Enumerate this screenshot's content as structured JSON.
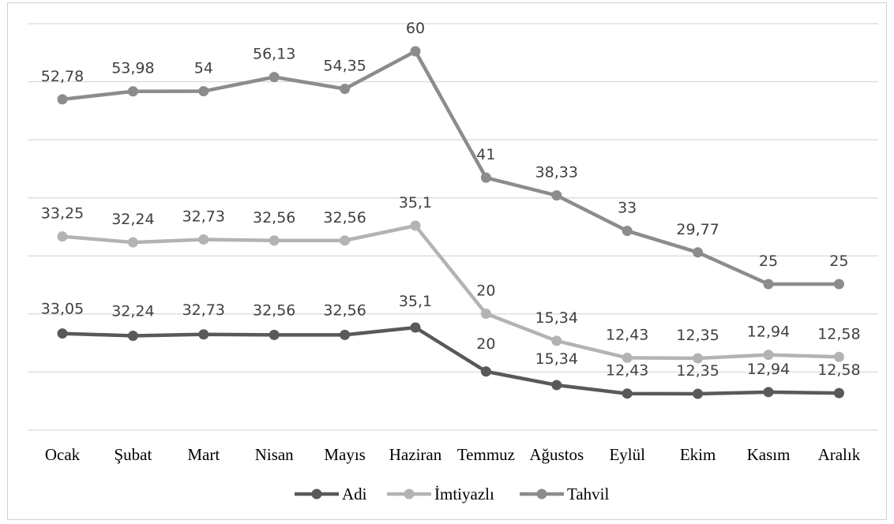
{
  "chart_data": {
    "type": "line",
    "title": "",
    "xlabel": "",
    "ylabel": "",
    "categories": [
      "Ocak",
      "Şubat",
      "Mart",
      "Nisan",
      "Mayıs",
      "Haziran",
      "Temmuz",
      "Ağustos",
      "Eylül",
      "Ekim",
      "Kasım",
      "Aralık"
    ],
    "series": [
      {
        "name": "Adi",
        "color": "#595959",
        "values": [
          33.05,
          32.24,
          32.73,
          32.56,
          32.56,
          35.1,
          20,
          15.34,
          12.43,
          12.35,
          12.94,
          12.58
        ],
        "labels": [
          "33,05",
          "32,24",
          "32,73",
          "32,56",
          "32,56",
          "35,1",
          "20",
          "15,34",
          "12,43",
          "12,35",
          "12,94",
          "12,58"
        ]
      },
      {
        "name": "İmtiyazlı",
        "color": "#b3b3b3",
        "values": [
          33.25,
          32.24,
          32.73,
          32.56,
          32.56,
          35.1,
          20,
          15.34,
          12.43,
          12.35,
          12.94,
          12.58
        ],
        "labels": [
          "33,25",
          "32,24",
          "32,73",
          "32,56",
          "32,56",
          "35,1",
          "20",
          "15,34",
          "12,43",
          "12,35",
          "12,94",
          "12,58"
        ]
      },
      {
        "name": "Tahvil",
        "color": "#8c8c8c",
        "values": [
          52.78,
          53.98,
          54,
          56.13,
          54.35,
          60,
          41,
          38.33,
          33,
          29.77,
          25,
          25
        ],
        "labels": [
          "52,78",
          "53,98",
          "54",
          "56,13",
          "54,35",
          "60",
          "41",
          "38,33",
          "33",
          "29,77",
          "25",
          "25"
        ]
      }
    ],
    "grid": true,
    "legend": "bottom"
  }
}
